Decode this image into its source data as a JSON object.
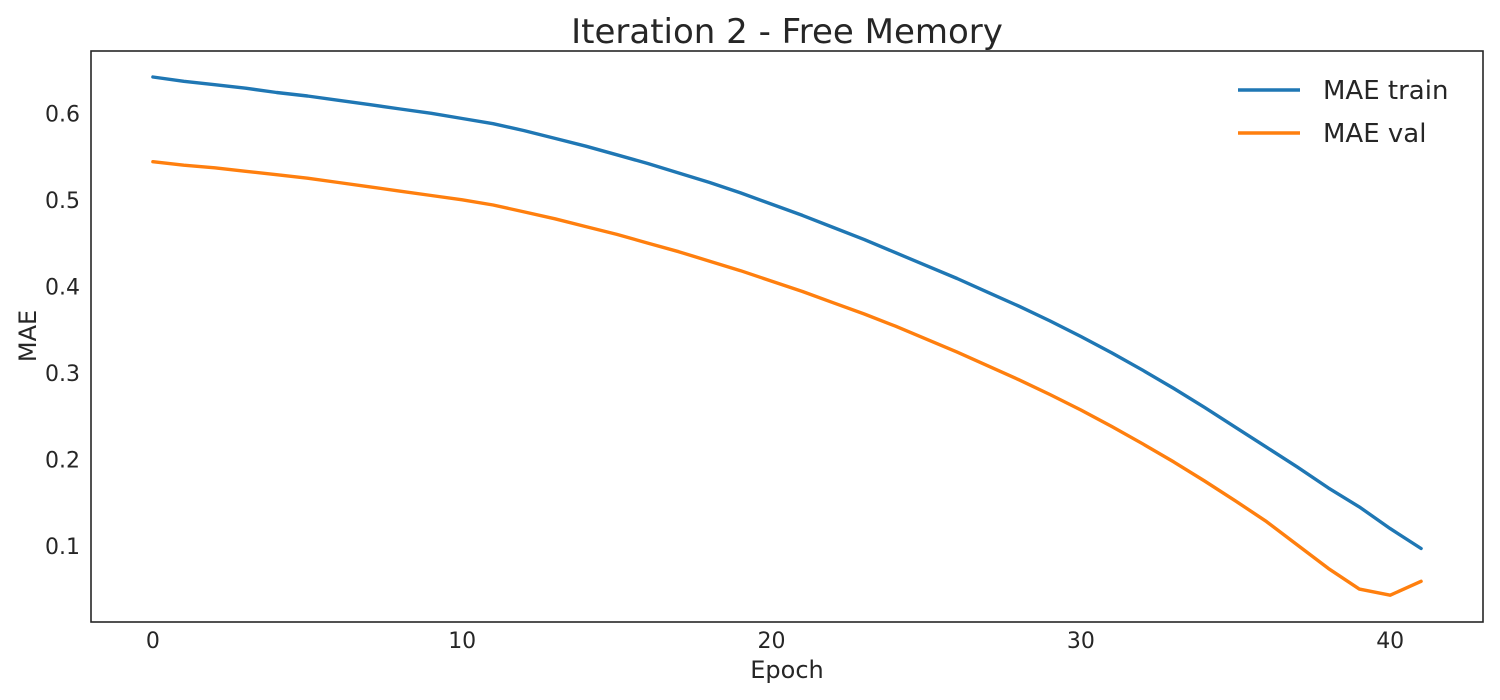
{
  "chart_data": {
    "type": "line",
    "title": "Iteration 2 - Free Memory",
    "xlabel": "Epoch",
    "ylabel": "MAE",
    "xlim": [
      -2,
      43
    ],
    "ylim": [
      0.012,
      0.672
    ],
    "xticks": [
      0,
      10,
      20,
      30,
      40
    ],
    "yticks": [
      0.1,
      0.2,
      0.3,
      0.4,
      0.5,
      0.6
    ],
    "grid": false,
    "legend": "top-right",
    "x": [
      0,
      1,
      2,
      3,
      4,
      5,
      6,
      7,
      8,
      9,
      10,
      11,
      12,
      13,
      14,
      15,
      16,
      17,
      18,
      19,
      20,
      21,
      22,
      23,
      24,
      25,
      26,
      27,
      28,
      29,
      30,
      31,
      32,
      33,
      34,
      35,
      36,
      37,
      38,
      39,
      40,
      41
    ],
    "series": [
      {
        "name": "MAE train",
        "color": "#1f77b4",
        "values": [
          0.642,
          0.637,
          0.633,
          0.629,
          0.624,
          0.62,
          0.615,
          0.61,
          0.605,
          0.6,
          0.594,
          0.588,
          0.58,
          0.571,
          0.562,
          0.552,
          0.542,
          0.531,
          0.52,
          0.508,
          0.495,
          0.482,
          0.468,
          0.454,
          0.439,
          0.424,
          0.409,
          0.393,
          0.377,
          0.36,
          0.342,
          0.323,
          0.303,
          0.282,
          0.26,
          0.237,
          0.214,
          0.191,
          0.167,
          0.145,
          0.12,
          0.097
        ]
      },
      {
        "name": "MAE val",
        "color": "#ff7f0e",
        "values": [
          0.544,
          0.54,
          0.537,
          0.533,
          0.529,
          0.525,
          0.52,
          0.515,
          0.51,
          0.505,
          0.5,
          0.494,
          0.486,
          0.478,
          0.469,
          0.46,
          0.45,
          0.44,
          0.429,
          0.418,
          0.406,
          0.394,
          0.381,
          0.368,
          0.354,
          0.339,
          0.324,
          0.308,
          0.292,
          0.275,
          0.257,
          0.238,
          0.218,
          0.197,
          0.175,
          0.152,
          0.128,
          0.101,
          0.074,
          0.05,
          0.043,
          0.059
        ]
      }
    ]
  }
}
